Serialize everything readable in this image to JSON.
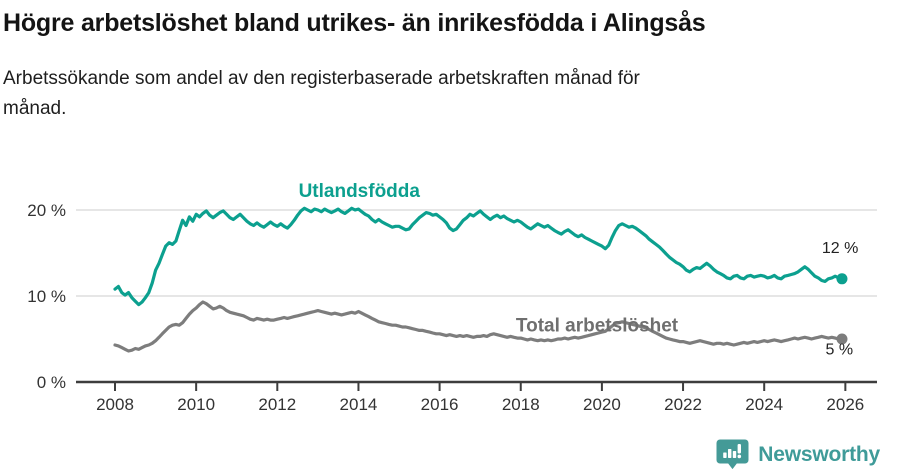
{
  "header": {
    "title": "Högre arbetslöshet bland utrikes- än inrikesfödda i Alingsås",
    "subtitle_line1": "Arbetssökande som andel av den registerbaserade arbetskraften månad för",
    "subtitle_line2": "månad."
  },
  "footer": {
    "brand": "Newsworthy"
  },
  "colors": {
    "foreign_line": "#0ca08f",
    "total_line": "#7d7d7d",
    "grid": "#d8d8d8",
    "axis": "#3d3d3d",
    "tick_text": "#333333",
    "end_label_text": "#222222",
    "brand_teal": "#449a97"
  },
  "chart_data": {
    "type": "line",
    "title": "Högre arbetslöshet bland utrikes- än inrikesfödda i Alingsås",
    "xlabel": "",
    "ylabel": "",
    "x_start": 2008,
    "points_per_year": 12,
    "xlim": [
      2007,
      2026.8
    ],
    "ylim": [
      0,
      23.5
    ],
    "grid": "horizontal",
    "legend_position": "inline-labels",
    "y_ticks": [
      {
        "value": 0,
        "label": "0 %"
      },
      {
        "value": 10,
        "label": "10 %"
      },
      {
        "value": 20,
        "label": "20 %"
      }
    ],
    "x_ticks": [
      {
        "year": 2008,
        "label": "2008"
      },
      {
        "year": 2010,
        "label": "2010"
      },
      {
        "year": 2012,
        "label": "2012"
      },
      {
        "year": 2014,
        "label": "2014"
      },
      {
        "year": 2016,
        "label": "2016"
      },
      {
        "year": 2018,
        "label": "2018"
      },
      {
        "year": 2020,
        "label": "2020"
      },
      {
        "year": 2022,
        "label": "2022"
      },
      {
        "year": 2024,
        "label": "2024"
      },
      {
        "year": 2026,
        "label": "2026"
      }
    ],
    "series": [
      {
        "name": "Utlandsfödda",
        "color": "#0ca08f",
        "line_width": 3.2,
        "end_dot": true,
        "end_label": "12 %",
        "values": [
          10.8,
          11.1,
          10.4,
          10.1,
          10.4,
          9.8,
          9.4,
          9.0,
          9.3,
          9.8,
          10.4,
          11.5,
          13.0,
          13.8,
          14.8,
          15.8,
          16.2,
          16.0,
          16.4,
          17.6,
          18.8,
          18.2,
          19.2,
          18.7,
          19.5,
          19.2,
          19.6,
          19.9,
          19.4,
          19.1,
          19.4,
          19.7,
          19.9,
          19.5,
          19.1,
          18.9,
          19.2,
          19.5,
          19.1,
          18.7,
          18.4,
          18.2,
          18.5,
          18.2,
          18.0,
          18.3,
          18.6,
          18.3,
          18.1,
          18.4,
          18.1,
          17.9,
          18.3,
          18.8,
          19.4,
          19.9,
          20.2,
          20.0,
          19.8,
          20.1,
          20.0,
          19.8,
          20.1,
          19.9,
          19.7,
          19.9,
          20.1,
          19.8,
          19.6,
          19.9,
          20.2,
          20.0,
          20.1,
          19.8,
          19.5,
          19.3,
          18.9,
          18.6,
          18.9,
          18.6,
          18.4,
          18.2,
          18.0,
          18.1,
          18.1,
          17.9,
          17.7,
          17.8,
          18.3,
          18.7,
          19.1,
          19.4,
          19.7,
          19.6,
          19.4,
          19.5,
          19.2,
          18.9,
          18.5,
          17.9,
          17.6,
          17.8,
          18.3,
          18.8,
          19.1,
          19.5,
          19.3,
          19.6,
          19.9,
          19.5,
          19.2,
          18.9,
          19.2,
          19.4,
          19.1,
          19.3,
          19.0,
          18.8,
          18.6,
          18.8,
          18.6,
          18.3,
          18.0,
          17.8,
          18.1,
          18.4,
          18.2,
          18.0,
          18.2,
          17.9,
          17.6,
          17.4,
          17.2,
          17.5,
          17.7,
          17.4,
          17.1,
          16.9,
          17.1,
          16.8,
          16.6,
          16.4,
          16.2,
          16.0,
          15.8,
          15.5,
          15.9,
          16.8,
          17.6,
          18.2,
          18.4,
          18.2,
          18.0,
          18.1,
          17.9,
          17.6,
          17.3,
          17.0,
          16.6,
          16.3,
          16.0,
          15.7,
          15.3,
          14.9,
          14.5,
          14.2,
          13.9,
          13.7,
          13.4,
          13.0,
          12.8,
          13.1,
          13.3,
          13.2,
          13.5,
          13.8,
          13.5,
          13.1,
          12.8,
          12.6,
          12.4,
          12.1,
          12.0,
          12.3,
          12.4,
          12.1,
          12.0,
          12.3,
          12.4,
          12.2,
          12.3,
          12.4,
          12.3,
          12.1,
          12.2,
          12.4,
          12.1,
          12.0,
          12.3,
          12.4,
          12.5,
          12.6,
          12.8,
          13.1,
          13.4,
          13.1,
          12.7,
          12.3,
          12.1,
          11.8,
          11.7,
          12.0,
          12.1,
          12.3,
          12.1,
          12.0
        ]
      },
      {
        "name": "Total arbetslöshet",
        "color": "#7d7d7d",
        "line_width": 3.2,
        "end_dot": true,
        "end_label": "5 %",
        "values": [
          4.3,
          4.2,
          4.0,
          3.8,
          3.6,
          3.7,
          3.9,
          3.8,
          4.0,
          4.2,
          4.3,
          4.5,
          4.8,
          5.2,
          5.6,
          6.0,
          6.4,
          6.6,
          6.7,
          6.6,
          6.9,
          7.4,
          7.9,
          8.3,
          8.6,
          9.0,
          9.3,
          9.1,
          8.8,
          8.5,
          8.6,
          8.8,
          8.6,
          8.3,
          8.1,
          8.0,
          7.9,
          7.8,
          7.7,
          7.5,
          7.3,
          7.2,
          7.4,
          7.3,
          7.2,
          7.3,
          7.2,
          7.2,
          7.3,
          7.4,
          7.5,
          7.4,
          7.5,
          7.6,
          7.7,
          7.8,
          7.9,
          8.0,
          8.1,
          8.2,
          8.3,
          8.2,
          8.1,
          8.0,
          7.9,
          8.0,
          7.9,
          7.8,
          7.9,
          8.0,
          8.1,
          8.0,
          8.2,
          8.0,
          7.8,
          7.6,
          7.4,
          7.2,
          7.0,
          6.9,
          6.8,
          6.7,
          6.6,
          6.6,
          6.5,
          6.4,
          6.4,
          6.3,
          6.2,
          6.1,
          6.0,
          6.0,
          5.9,
          5.8,
          5.7,
          5.6,
          5.6,
          5.5,
          5.4,
          5.5,
          5.4,
          5.3,
          5.4,
          5.3,
          5.4,
          5.3,
          5.2,
          5.3,
          5.3,
          5.4,
          5.3,
          5.5,
          5.6,
          5.5,
          5.4,
          5.3,
          5.2,
          5.3,
          5.2,
          5.1,
          5.1,
          5.0,
          4.9,
          5.0,
          4.9,
          4.8,
          4.9,
          4.8,
          4.9,
          4.8,
          4.9,
          5.0,
          5.0,
          5.1,
          5.0,
          5.1,
          5.2,
          5.1,
          5.2,
          5.3,
          5.4,
          5.5,
          5.6,
          5.7,
          5.8,
          5.9,
          6.2,
          6.5,
          6.8,
          6.9,
          7.0,
          6.9,
          6.8,
          6.7,
          6.6,
          6.5,
          6.4,
          6.3,
          6.1,
          5.9,
          5.7,
          5.5,
          5.3,
          5.1,
          5.0,
          4.9,
          4.8,
          4.7,
          4.7,
          4.6,
          4.5,
          4.6,
          4.7,
          4.8,
          4.7,
          4.6,
          4.5,
          4.4,
          4.5,
          4.5,
          4.4,
          4.5,
          4.4,
          4.3,
          4.4,
          4.5,
          4.6,
          4.5,
          4.6,
          4.7,
          4.6,
          4.7,
          4.8,
          4.7,
          4.8,
          4.9,
          4.8,
          4.7,
          4.8,
          4.9,
          5.0,
          5.1,
          5.0,
          5.1,
          5.2,
          5.1,
          5.0,
          5.1,
          5.2,
          5.3,
          5.2,
          5.1,
          5.2,
          5.1,
          5.0,
          5.0
        ]
      }
    ],
    "annotations": [
      {
        "text": "Utlandsfödda",
        "year": 2014.02,
        "value": 21.5,
        "color": "#0ca08f",
        "size": 19,
        "weight": 700
      },
      {
        "text": "Total arbetslöshet",
        "year": 2019.88,
        "value": 5.85,
        "color": "#6f6f6f",
        "size": 19,
        "weight": 700
      },
      {
        "text": "12 %",
        "year": 2025.87,
        "value": 15.0,
        "color": "#222222",
        "size": 16,
        "weight": 400
      },
      {
        "text": "5 %",
        "year": 2025.85,
        "value": 3.2,
        "color": "#222222",
        "size": 16,
        "weight": 400
      }
    ]
  }
}
